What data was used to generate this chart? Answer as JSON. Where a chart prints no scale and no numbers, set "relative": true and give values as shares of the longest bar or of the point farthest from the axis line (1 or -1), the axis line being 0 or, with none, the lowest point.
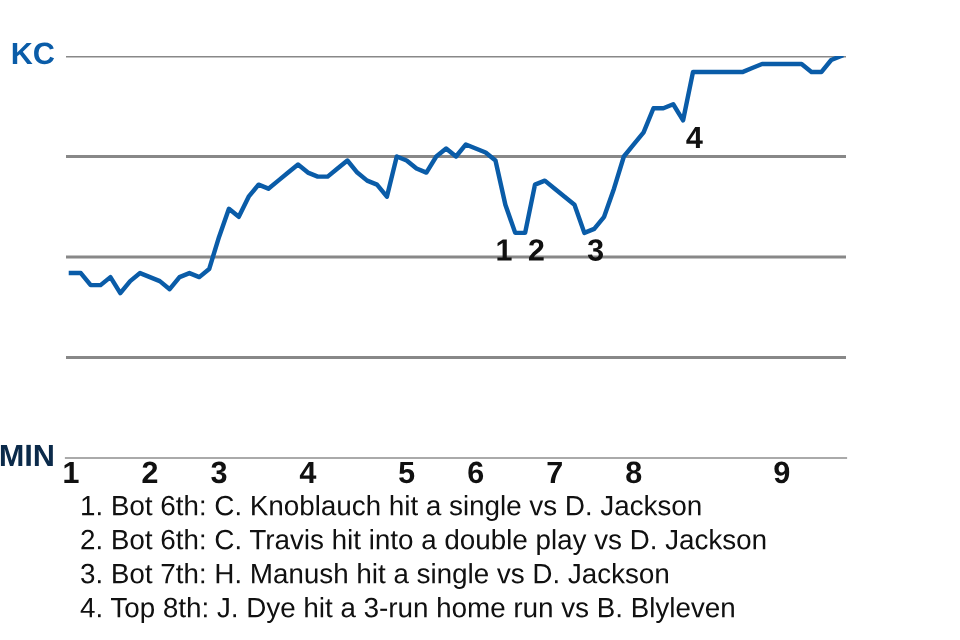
{
  "chart_data": {
    "type": "line",
    "color": "#0a5ca8",
    "relative": true,
    "categories": [
      "1",
      null,
      null,
      null,
      null,
      null,
      null,
      null,
      "2",
      null,
      null,
      null,
      null,
      null,
      null,
      "3",
      null,
      null,
      null,
      null,
      null,
      null,
      null,
      null,
      "4",
      null,
      null,
      null,
      null,
      null,
      null,
      null,
      null,
      null,
      "5",
      null,
      null,
      null,
      null,
      null,
      null,
      "6",
      null,
      null,
      null,
      null,
      null,
      null,
      null,
      "7",
      null,
      null,
      null,
      null,
      null,
      null,
      null,
      "8",
      null,
      null,
      null,
      null,
      null,
      null,
      null,
      null,
      null,
      null,
      null,
      null,
      null,
      null,
      "9",
      null,
      null,
      null,
      null,
      null,
      null
    ],
    "values": [
      0.46,
      0.46,
      0.43,
      0.43,
      0.45,
      0.41,
      0.44,
      0.46,
      0.45,
      0.44,
      0.42,
      0.45,
      0.46,
      0.45,
      0.47,
      0.55,
      0.62,
      0.6,
      0.65,
      0.68,
      0.67,
      0.69,
      0.71,
      0.73,
      0.71,
      0.7,
      0.7,
      0.72,
      0.74,
      0.71,
      0.69,
      0.68,
      0.65,
      0.75,
      0.74,
      0.72,
      0.71,
      0.75,
      0.77,
      0.75,
      0.78,
      0.77,
      0.76,
      0.74,
      0.63,
      0.56,
      0.56,
      0.68,
      0.69,
      0.67,
      0.65,
      0.63,
      0.56,
      0.57,
      0.6,
      0.67,
      0.75,
      0.78,
      0.81,
      0.87,
      0.87,
      0.88,
      0.84,
      0.96,
      0.96,
      0.96,
      0.96,
      0.96,
      0.96,
      0.97,
      0.98,
      0.98,
      0.98,
      0.98,
      0.98,
      0.96,
      0.96,
      0.99,
      1.0
    ],
    "marker": "none",
    "line_style": "solid",
    "ref_lines": [
      {
        "axis": "y",
        "value": 1,
        "color": "#888888"
      },
      {
        "axis": "y",
        "value": 0.75,
        "color": "#888888"
      },
      {
        "axis": "y",
        "value": 0.5,
        "color": "#888888"
      },
      {
        "axis": "y",
        "value": 0.25,
        "color": "#888888"
      }
    ],
    "annotations": [
      "KC",
      "MIN",
      {
        "text": "1",
        "y": 0.56
      },
      {
        "text": "2",
        "y": 0.56
      },
      {
        "text": "3",
        "y": 0.56
      },
      {
        "text": "4",
        "y": 0.84
      },
      "1. Bot 6th: C. Knoblauch hit a single vs D. Jackson",
      "2. Bot 6th: C. Travis hit into a double play vs D. Jackson",
      "3. Bot 7th: H. Manush hit a single vs D. Jackson",
      "4. Top 8th: J. Dye hit a 3-run home run vs B. Blyleven"
    ]
  }
}
